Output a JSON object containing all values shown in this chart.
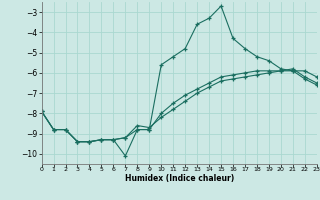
{
  "xlabel": "Humidex (Indice chaleur)",
  "background_color": "#cce8e4",
  "grid_color": "#aad8d0",
  "line_color": "#1a6e60",
  "xlim": [
    0,
    23
  ],
  "ylim": [
    -10.5,
    -2.5
  ],
  "yticks": [
    -10,
    -9,
    -8,
    -7,
    -6,
    -5,
    -4,
    -3
  ],
  "xticks": [
    0,
    1,
    2,
    3,
    4,
    5,
    6,
    7,
    8,
    9,
    10,
    11,
    12,
    13,
    14,
    15,
    16,
    17,
    18,
    19,
    20,
    21,
    22,
    23
  ],
  "line1_x": [
    0,
    1,
    2,
    3,
    4,
    5,
    6,
    7,
    8,
    9,
    10,
    11,
    12,
    13,
    14,
    15,
    16,
    17,
    18,
    19,
    20,
    21,
    22,
    23
  ],
  "line1_y": [
    -7.9,
    -8.8,
    -8.8,
    -9.4,
    -9.4,
    -9.3,
    -9.3,
    -10.1,
    -8.8,
    -8.8,
    -5.6,
    -5.2,
    -4.8,
    -3.6,
    -3.3,
    -2.7,
    -4.3,
    -4.8,
    -5.2,
    -5.4,
    -5.8,
    -5.9,
    -5.9,
    -6.2
  ],
  "line2_x": [
    0,
    1,
    2,
    3,
    4,
    5,
    6,
    7,
    8,
    9,
    10,
    11,
    12,
    13,
    14,
    15,
    16,
    17,
    18,
    19,
    20,
    21,
    22,
    23
  ],
  "line2_y": [
    -7.9,
    -8.8,
    -8.8,
    -9.4,
    -9.4,
    -9.3,
    -9.3,
    -9.2,
    -8.6,
    -8.7,
    -8.2,
    -7.8,
    -7.4,
    -7.0,
    -6.7,
    -6.4,
    -6.3,
    -6.2,
    -6.1,
    -6.0,
    -5.9,
    -5.8,
    -6.2,
    -6.5
  ],
  "line3_x": [
    0,
    1,
    2,
    3,
    4,
    5,
    6,
    7,
    8,
    9,
    10,
    11,
    12,
    13,
    14,
    15,
    16,
    17,
    18,
    19,
    20,
    21,
    22,
    23
  ],
  "line3_y": [
    -7.9,
    -8.8,
    -8.8,
    -9.4,
    -9.4,
    -9.3,
    -9.3,
    -9.2,
    -8.8,
    -8.8,
    -8.0,
    -7.5,
    -7.1,
    -6.8,
    -6.5,
    -6.2,
    -6.1,
    -6.0,
    -5.9,
    -5.9,
    -5.9,
    -5.9,
    -6.3,
    -6.6
  ],
  "marker": "+",
  "markersize": 3,
  "linewidth": 0.8
}
